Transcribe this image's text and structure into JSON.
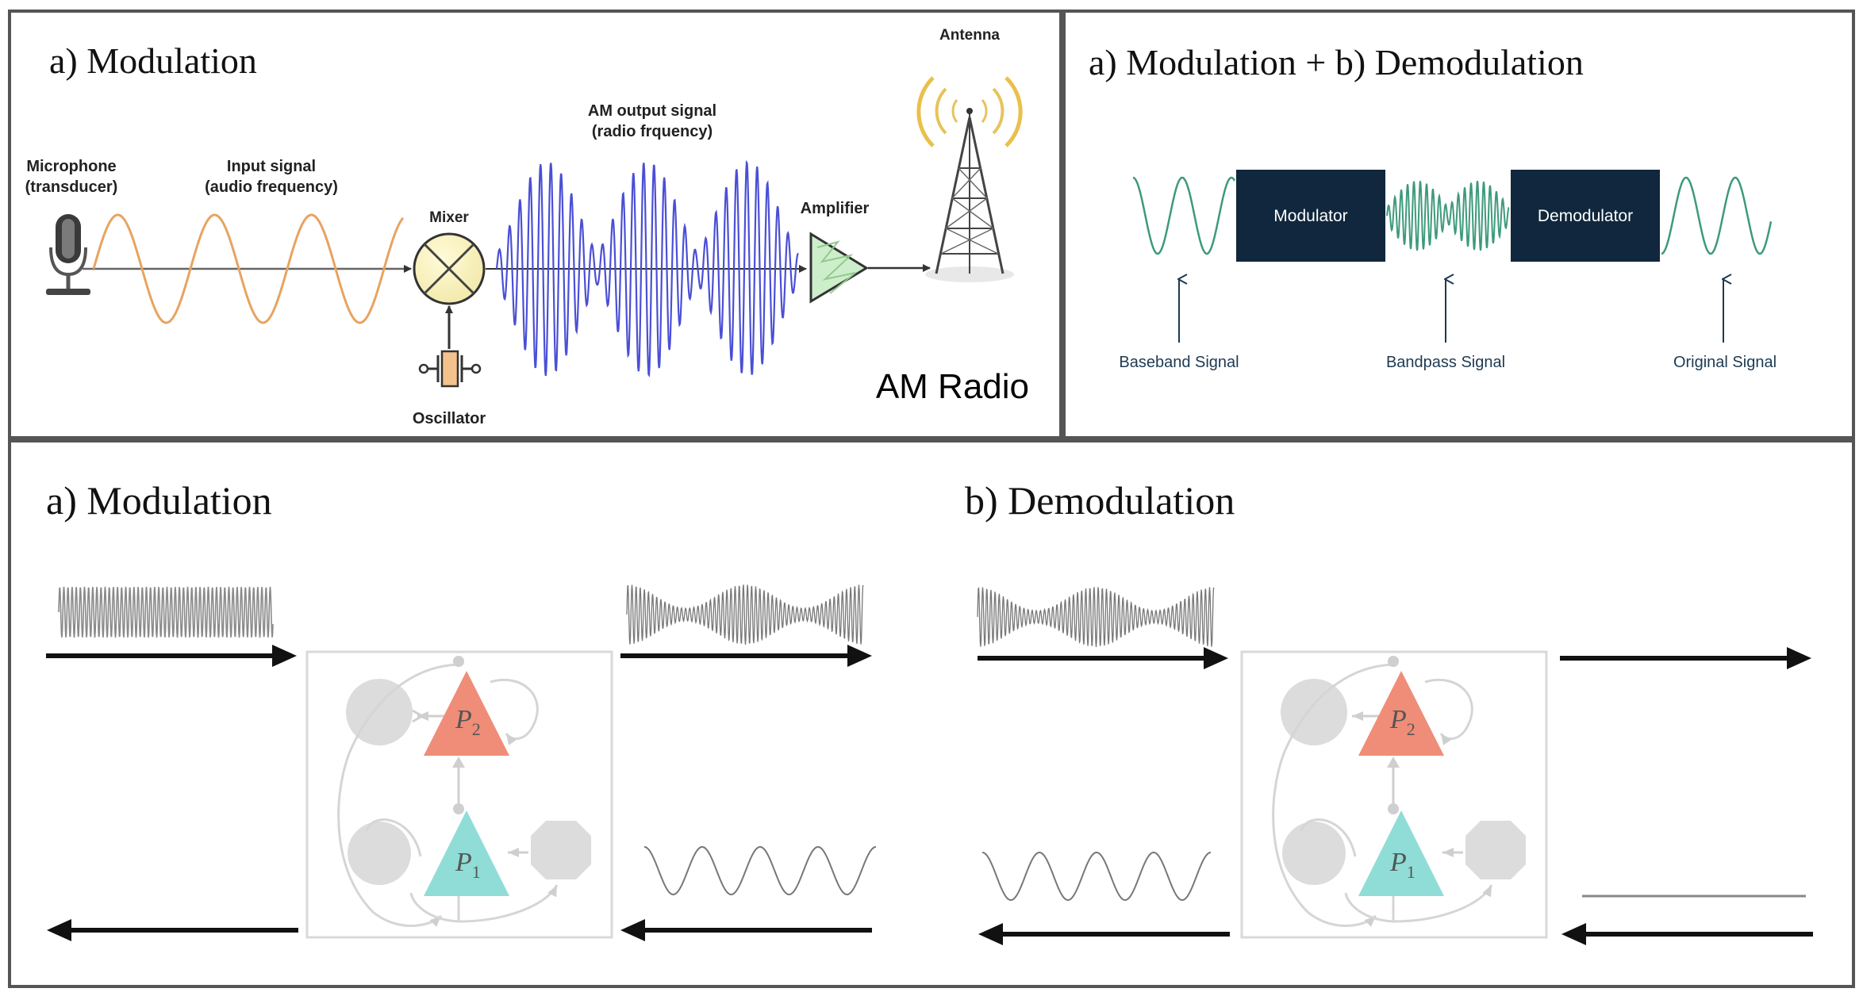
{
  "panel_top_left": {
    "title": "a) Modulation",
    "microphone_label_1": "Microphone",
    "microphone_label_2": "(transducer)",
    "input_label_1": "Input signal",
    "input_label_2": "(audio frequency)",
    "mixer_label": "Mixer",
    "output_label_1": "AM output signal",
    "output_label_2": "(radio frquency)",
    "amplifier_label": "Amplifier",
    "antenna_label": "Antenna",
    "oscillator_label": "Oscillator",
    "corner_label": "AM Radio"
  },
  "panel_top_right": {
    "title": "a) Modulation + b) Demodulation",
    "modulator_label": "Modulator",
    "demodulator_label": "Demodulator",
    "baseband_label": "Baseband Signal",
    "bandpass_label": "Bandpass Signal",
    "original_label": "Original Signal"
  },
  "panel_bottom": {
    "left_title": "a) Modulation",
    "right_title": "b) Demodulation",
    "p2_letter": "P",
    "p2_sub": "2",
    "p1_letter": "P",
    "p1_sub": "1"
  },
  "colors": {
    "frame": "#555555",
    "audio_wave": "#e8a360",
    "am_wave": "#4a4fd6",
    "block_navy": "#10273d",
    "signal_green": "#3d9a7a",
    "p2_salmon": "#ef8d78",
    "p1_teal": "#8fddd6",
    "circuit_gray": "#d9d9d9"
  }
}
